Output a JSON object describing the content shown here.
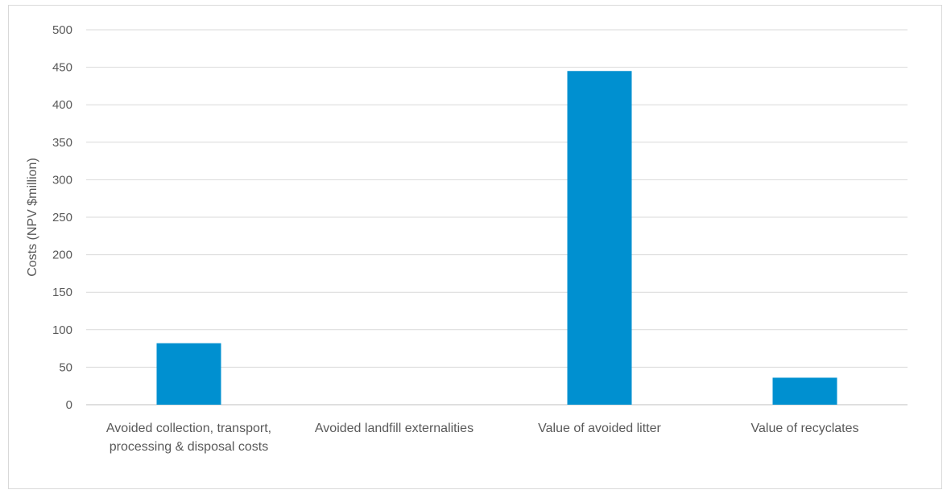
{
  "chart_data": {
    "type": "bar",
    "title": "",
    "xlabel": "",
    "ylabel": "Costs (NPV $million)",
    "ylim": [
      0,
      500
    ],
    "yticks": [
      0,
      50,
      100,
      150,
      200,
      250,
      300,
      350,
      400,
      450,
      500
    ],
    "grid": true,
    "categories": [
      [
        "Avoided collection, transport,",
        "processing & disposal costs"
      ],
      [
        "Avoided landfill externalities"
      ],
      [
        "Value of avoided litter"
      ],
      [
        "Value of recyclates"
      ]
    ],
    "values": [
      82,
      0,
      445,
      36
    ],
    "bar_color": "#0090d0",
    "grid_color": "#d9d9d9"
  }
}
